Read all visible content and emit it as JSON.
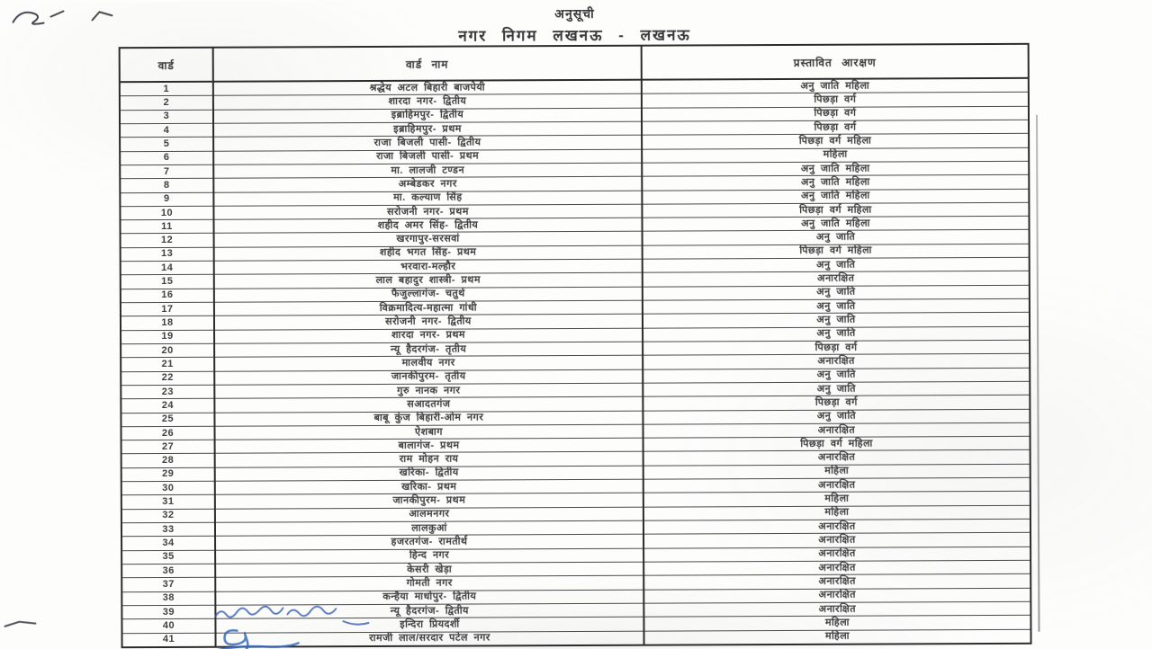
{
  "page": {
    "schedule_label": "अनुसूची",
    "title": "नगर निगम लखनऊ - लखनऊ"
  },
  "table": {
    "headers": {
      "ward_no": "वार्ड",
      "ward_name": "वार्ड नाम",
      "reservation": "प्रस्तावित आरक्षण"
    },
    "rows": [
      {
        "no": "1",
        "name": "श्रद्धेय अटल बिहारी बाजपेयी",
        "reservation": "अनु जाति महिला"
      },
      {
        "no": "2",
        "name": "शारदा नगर- द्वितीय",
        "reservation": "पिछड़ा वर्ग"
      },
      {
        "no": "3",
        "name": "इब्राहिमपुर- द्वितीय",
        "reservation": "पिछड़ा वर्ग"
      },
      {
        "no": "4",
        "name": "इब्राहिमपुर- प्रथम",
        "reservation": "पिछड़ा वर्ग"
      },
      {
        "no": "5",
        "name": "राजा बिजली पासी- द्वितीय",
        "reservation": "पिछड़ा वर्ग महिला"
      },
      {
        "no": "6",
        "name": "राजा बिजली पासी- प्रथम",
        "reservation": "महिला"
      },
      {
        "no": "7",
        "name": "मा. लालजी टण्डन",
        "reservation": "अनु जाति महिला"
      },
      {
        "no": "8",
        "name": "अम्बेडकर नगर",
        "reservation": "अनु जाति महिला"
      },
      {
        "no": "9",
        "name": "मा. कल्याण सिंह",
        "reservation": "अनु जाति महिला"
      },
      {
        "no": "10",
        "name": "सरोजनी नगर- प्रथम",
        "reservation": "पिछड़ा वर्ग महिला"
      },
      {
        "no": "11",
        "name": "शहीद अमर सिंह- द्वितीय",
        "reservation": "अनु जाति महिला"
      },
      {
        "no": "12",
        "name": "खरगापुर-सरसवां",
        "reservation": "अनु जाति"
      },
      {
        "no": "13",
        "name": "शहीद भगत सिंह- प्रथम",
        "reservation": "पिछड़ा वर्ग महिला"
      },
      {
        "no": "14",
        "name": "भरवारा-मल्हौर",
        "reservation": "अनु जाति"
      },
      {
        "no": "15",
        "name": "लाल बहादुर शास्त्री- प्रथम",
        "reservation": "अनारक्षित"
      },
      {
        "no": "16",
        "name": "फैजुल्लागंज- चतुर्थ",
        "reservation": "अनु जाति"
      },
      {
        "no": "17",
        "name": "विक्रमादित्य-महात्मा गांधी",
        "reservation": "अनु जाति"
      },
      {
        "no": "18",
        "name": "सरोजनी नगर- द्वितीय",
        "reservation": "अनु जाति"
      },
      {
        "no": "19",
        "name": "शारदा नगर- प्रथम",
        "reservation": "अनु जाति"
      },
      {
        "no": "20",
        "name": "न्यू हैदरगंज- तृतीय",
        "reservation": "पिछड़ा वर्ग"
      },
      {
        "no": "21",
        "name": "मालवीय नगर",
        "reservation": "अनारक्षित"
      },
      {
        "no": "22",
        "name": "जानकीपुरम- तृतीय",
        "reservation": "अनु जाति"
      },
      {
        "no": "23",
        "name": "गुरु नानक नगर",
        "reservation": "अनु जाति"
      },
      {
        "no": "24",
        "name": "सआदतगंज",
        "reservation": "पिछड़ा वर्ग"
      },
      {
        "no": "25",
        "name": "बाबू कुंज बिहारी-ओम नगर",
        "reservation": "अनु जाति"
      },
      {
        "no": "26",
        "name": "ऐशबाग",
        "reservation": "अनारक्षित"
      },
      {
        "no": "27",
        "name": "बालागंज- प्रथम",
        "reservation": "पिछड़ा वर्ग महिला"
      },
      {
        "no": "28",
        "name": "राम मोहन राय",
        "reservation": "अनारक्षित"
      },
      {
        "no": "29",
        "name": "खरिका- द्वितीय",
        "reservation": "महिला"
      },
      {
        "no": "30",
        "name": "खरिका- प्रथम",
        "reservation": "अनारक्षित"
      },
      {
        "no": "31",
        "name": "जानकीपुरम- प्रथम",
        "reservation": "महिला"
      },
      {
        "no": "32",
        "name": "आलमनगर",
        "reservation": "महिला"
      },
      {
        "no": "33",
        "name": "लालकुआं",
        "reservation": "अनारक्षित"
      },
      {
        "no": "34",
        "name": "हजरतगंज- रामतीर्थ",
        "reservation": "अनारक्षित"
      },
      {
        "no": "35",
        "name": "हिन्द नगर",
        "reservation": "अनारक्षित"
      },
      {
        "no": "36",
        "name": "केसरी खेड़ा",
        "reservation": "अनारक्षित"
      },
      {
        "no": "37",
        "name": "गोमती नगर",
        "reservation": "अनारक्षित"
      },
      {
        "no": "38",
        "name": "कन्हैया माधोपुर- द्वितीय",
        "reservation": "अनारक्षित"
      },
      {
        "no": "39",
        "name": "न्यू हैदरगंज- द्वितीय",
        "reservation": "अनारक्षित"
      },
      {
        "no": "40",
        "name": "इन्दिरा प्रियदर्शी",
        "reservation": "महिला"
      },
      {
        "no": "41",
        "name": "रामजी लाल/सरदार पटेल नगर",
        "reservation": "महिला"
      }
    ]
  },
  "annotations": {
    "ink_color_blue": "#3a5fb0",
    "ink_color_black": "#2a2a35"
  }
}
